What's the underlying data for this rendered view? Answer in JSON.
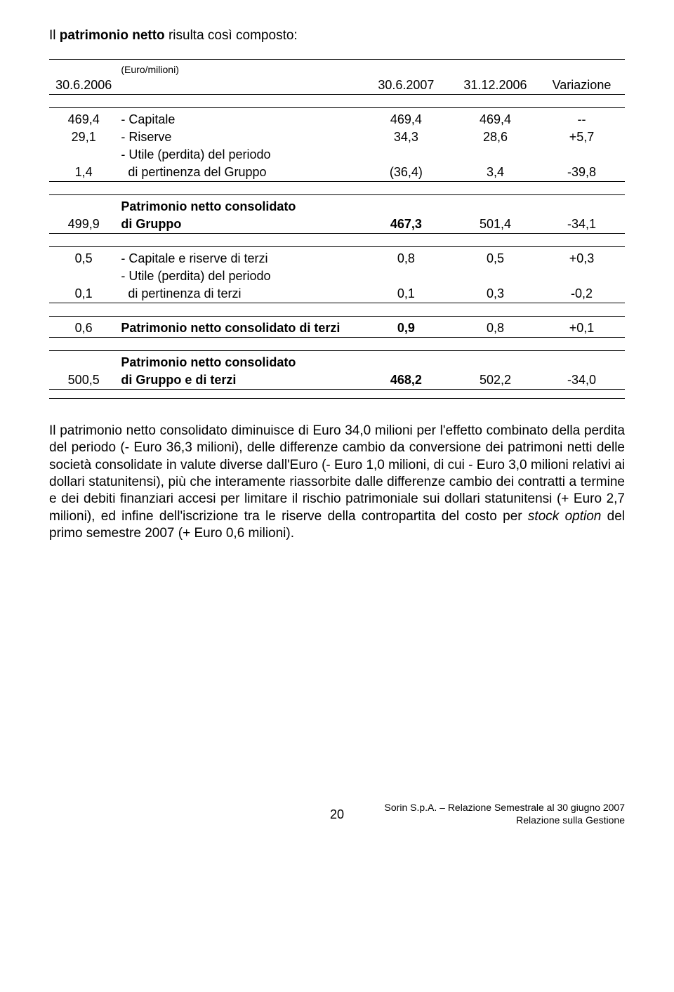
{
  "intro": {
    "prefix": "Il ",
    "bold": "patrimonio netto",
    "suffix": " risulta così composto:"
  },
  "header": {
    "unit": "(Euro/milioni)",
    "c1": "30.6.2006",
    "c2": "30.6.2007",
    "c3": "31.12.2006",
    "c4": "Variazione"
  },
  "rows": {
    "r1": {
      "a": "469,4",
      "label": "- Capitale",
      "v1": "469,4",
      "v2": "469,4",
      "var": "--"
    },
    "r2": {
      "a": "29,1",
      "label": "- Riserve",
      "v1": "34,3",
      "v2": "28,6",
      "var": "+5,7"
    },
    "r3a": {
      "label": "- Utile (perdita) del periodo"
    },
    "r3": {
      "a": "1,4",
      "label": "  di pertinenza del Gruppo",
      "v1": "(36,4)",
      "v2": "3,4",
      "var": "-39,8"
    },
    "r4a": {
      "label": "Patrimonio netto consolidato"
    },
    "r4": {
      "a": "499,9",
      "label": "di Gruppo",
      "v1": "467,3",
      "v2": "501,4",
      "var": "-34,1"
    },
    "r5": {
      "a": "0,5",
      "label": "- Capitale e riserve di terzi",
      "v1": "0,8",
      "v2": "0,5",
      "var": "+0,3"
    },
    "r6a": {
      "label": "- Utile (perdita) del periodo"
    },
    "r6": {
      "a": "0,1",
      "label": "  di pertinenza di terzi",
      "v1": "0,1",
      "v2": "0,3",
      "var": "-0,2"
    },
    "r7": {
      "a": "0,6",
      "label": "Patrimonio netto consolidato di terzi",
      "v1": "0,9",
      "v2": "0,8",
      "var": "+0,1"
    },
    "r8a": {
      "label": "Patrimonio netto consolidato"
    },
    "r8": {
      "a": "500,5",
      "label": "di Gruppo e di terzi",
      "v1": "468,2",
      "v2": "502,2",
      "var": "-34,0"
    }
  },
  "body": {
    "p1a": "Il patrimonio netto consolidato diminuisce di Euro 34,0 milioni per l'effetto combinato della perdita del periodo (- Euro 36,3 milioni), delle differenze cambio da conversione dei patrimoni netti delle società consolidate in valute diverse dall'Euro (- Euro 1,0 milioni, di cui - Euro 3,0 milioni relativi ai dollari statunitensi), più che interamente riassorbite dalle differenze cambio dei contratti a termine e dei debiti finanziari accesi per limitare il rischio patrimoniale sui dollari statunitensi (+ Euro 2,7 milioni), ed infine dell'iscrizione tra le riserve della contropartita del costo per ",
    "p1i": "stock option",
    "p1b": " del primo semestre 2007 (+ Euro 0,6 milioni)."
  },
  "footer": {
    "pagenum": "20",
    "line1": "Sorin S.p.A. – Relazione Semestrale al 30 giugno 2007",
    "line2": "Relazione sulla Gestione"
  }
}
